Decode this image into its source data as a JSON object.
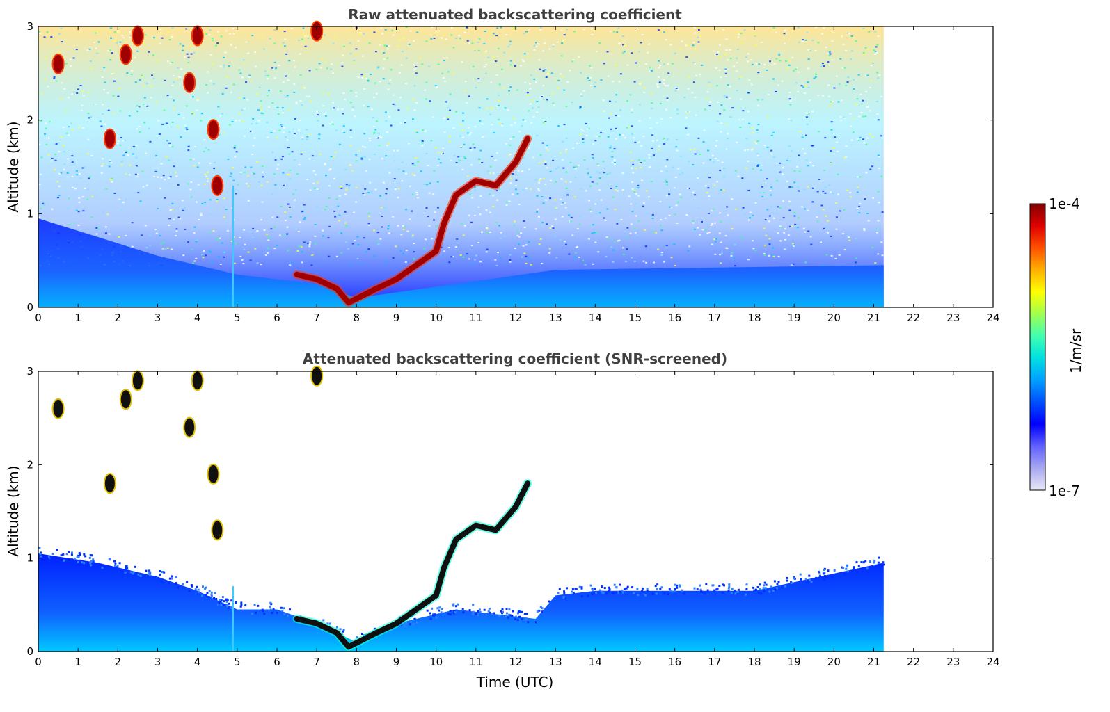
{
  "chart_data": [
    {
      "type": "heatmap",
      "title": "Raw attenuated backscattering coefficient",
      "xlabel": "",
      "ylabel": "Altitude (km)",
      "xlim": [
        0,
        24
      ],
      "ylim": [
        0,
        3
      ],
      "x_ticks": [
        "0",
        "1",
        "2",
        "3",
        "4",
        "5",
        "6",
        "7",
        "8",
        "9",
        "10",
        "11",
        "12",
        "13",
        "14",
        "15",
        "16",
        "17",
        "18",
        "19",
        "20",
        "21",
        "22",
        "23",
        "24"
      ],
      "y_ticks": [
        "0",
        "1",
        "2",
        "3"
      ],
      "data_extent_hours": [
        0,
        21.25
      ],
      "grid": false,
      "screening": "none",
      "aerosol_layer_top_km": [
        [
          0,
          0.95
        ],
        [
          3,
          0.55
        ],
        [
          5,
          0.35
        ],
        [
          7,
          0.25
        ],
        [
          8,
          0.1
        ],
        [
          13,
          0.4
        ],
        [
          21.25,
          0.45
        ]
      ],
      "cloud_base_trace": [
        [
          6.5,
          0.35
        ],
        [
          7.0,
          0.3
        ],
        [
          7.5,
          0.2
        ],
        [
          7.8,
          0.05
        ],
        [
          8.5,
          0.2
        ],
        [
          9.0,
          0.3
        ],
        [
          10.0,
          0.6
        ],
        [
          10.2,
          0.9
        ],
        [
          10.5,
          1.2
        ],
        [
          11.0,
          1.35
        ],
        [
          11.5,
          1.3
        ],
        [
          12.0,
          1.55
        ],
        [
          12.3,
          1.8
        ]
      ],
      "cloud_patches": [
        [
          0.5,
          2.6
        ],
        [
          1.8,
          1.8
        ],
        [
          2.2,
          2.7
        ],
        [
          2.5,
          2.9
        ],
        [
          3.8,
          2.4
        ],
        [
          4.0,
          2.9
        ],
        [
          4.4,
          1.9
        ],
        [
          4.5,
          1.3
        ],
        [
          7.0,
          2.95
        ]
      ]
    },
    {
      "type": "heatmap",
      "title": "Attenuated backscattering coefficient (SNR-screened)",
      "xlabel": "Time (UTC)",
      "ylabel": "Altitude (km)",
      "xlim": [
        0,
        24
      ],
      "ylim": [
        0,
        3
      ],
      "x_ticks": [
        "0",
        "1",
        "2",
        "3",
        "4",
        "5",
        "6",
        "7",
        "8",
        "9",
        "10",
        "11",
        "12",
        "13",
        "14",
        "15",
        "16",
        "17",
        "18",
        "19",
        "20",
        "21",
        "22",
        "23",
        "24"
      ],
      "y_ticks": [
        "0",
        "1",
        "2",
        "3"
      ],
      "data_extent_hours": [
        0,
        21.25
      ],
      "grid": false,
      "screening": "SNR",
      "aerosol_layer_top_km": [
        [
          0,
          1.05
        ],
        [
          1.5,
          0.95
        ],
        [
          2.0,
          0.9
        ],
        [
          3.0,
          0.8
        ],
        [
          4.0,
          0.65
        ],
        [
          5.0,
          0.45
        ],
        [
          6.0,
          0.45
        ],
        [
          7.0,
          0.3
        ],
        [
          8.0,
          0.1
        ],
        [
          9.0,
          0.3
        ],
        [
          10.5,
          0.45
        ],
        [
          12.5,
          0.35
        ],
        [
          13.0,
          0.6
        ],
        [
          14.0,
          0.65
        ],
        [
          18.0,
          0.65
        ],
        [
          21.25,
          0.95
        ]
      ],
      "cloud_base_trace": [
        [
          6.5,
          0.35
        ],
        [
          7.0,
          0.3
        ],
        [
          7.5,
          0.2
        ],
        [
          7.8,
          0.05
        ],
        [
          8.5,
          0.2
        ],
        [
          9.0,
          0.3
        ],
        [
          10.0,
          0.6
        ],
        [
          10.2,
          0.9
        ],
        [
          10.5,
          1.2
        ],
        [
          11.0,
          1.35
        ],
        [
          11.5,
          1.3
        ],
        [
          12.0,
          1.55
        ],
        [
          12.3,
          1.8
        ]
      ],
      "cloud_patches": [
        [
          0.5,
          2.6
        ],
        [
          1.8,
          1.8
        ],
        [
          2.2,
          2.7
        ],
        [
          2.5,
          2.9
        ],
        [
          3.8,
          2.4
        ],
        [
          4.0,
          2.9
        ],
        [
          4.4,
          1.9
        ],
        [
          4.5,
          1.3
        ],
        [
          7.0,
          2.95
        ]
      ]
    }
  ],
  "colorbar": {
    "label": "1/m/sr",
    "max_label": "1e-4",
    "min_label": "1e-7",
    "scale": "log",
    "colors": [
      "#e8e8f8",
      "#a8a8f0",
      "#6060ff",
      "#0000ff",
      "#0050ff",
      "#00a0ff",
      "#00e0e0",
      "#40ffb0",
      "#a0ff50",
      "#ffff00",
      "#ffb000",
      "#ff5000",
      "#e00000",
      "#800000"
    ]
  }
}
